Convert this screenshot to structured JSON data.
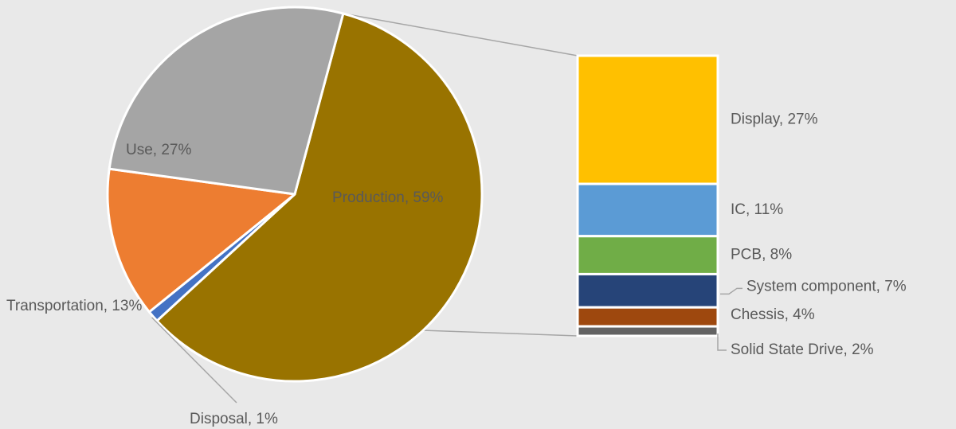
{
  "chart_data": {
    "type": "pie",
    "variant": "bar-of-pie",
    "pie": {
      "slices": [
        {
          "name": "Production",
          "label": "Production, 59%",
          "value": 59,
          "color": "#997300"
        },
        {
          "name": "Disposal",
          "label": "Disposal, 1%",
          "value": 1,
          "color": "#4472c4"
        },
        {
          "name": "Transportation",
          "label": "Transportation, 13%",
          "value": 13,
          "color": "#ed7d31"
        },
        {
          "name": "Use",
          "label": "Use, 27%",
          "value": 27,
          "color": "#a5a5a5"
        }
      ]
    },
    "breakdown": {
      "of": "Production",
      "segments": [
        {
          "name": "Display",
          "label": "Display, 27%",
          "value": 27,
          "color": "#ffc000"
        },
        {
          "name": "IC",
          "label": "IC, 11%",
          "value": 11,
          "color": "#5b9bd5"
        },
        {
          "name": "PCB",
          "label": "PCB, 8%",
          "value": 8,
          "color": "#70ad47"
        },
        {
          "name": "System component",
          "label": "System component, 7%",
          "value": 7,
          "color": "#264478"
        },
        {
          "name": "Chessis",
          "label": "Chessis, 4%",
          "value": 4,
          "color": "#9e480e"
        },
        {
          "name": "Solid State Drive",
          "label": "Solid State Drive, 2%",
          "value": 2,
          "color": "#636363"
        }
      ]
    },
    "title": "",
    "legend": "none",
    "background": "#e9e9e9"
  }
}
